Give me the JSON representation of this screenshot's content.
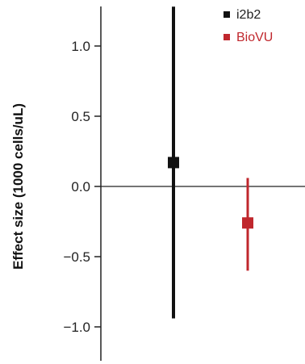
{
  "chart_data": {
    "type": "scatter",
    "title": "",
    "xlabel": "",
    "ylabel": "Effect size (1000 cells/uL)",
    "ylim": [
      -1.2,
      1.28
    ],
    "yticks": [
      1.0,
      0.5,
      0.0,
      -0.5,
      -1.0
    ],
    "ytick_labels": [
      "1.0",
      "0.5",
      "0.0",
      "−0.5",
      "−1.0"
    ],
    "grid": false,
    "legend_position": "top-right",
    "series": [
      {
        "name": "i2b2",
        "color": "#111111",
        "estimate": 0.17,
        "ci_low": -0.94,
        "ci_high": 1.28
      },
      {
        "name": "BioVU",
        "color": "#c0272d",
        "estimate": -0.26,
        "ci_low": -0.6,
        "ci_high": 0.06
      }
    ]
  }
}
